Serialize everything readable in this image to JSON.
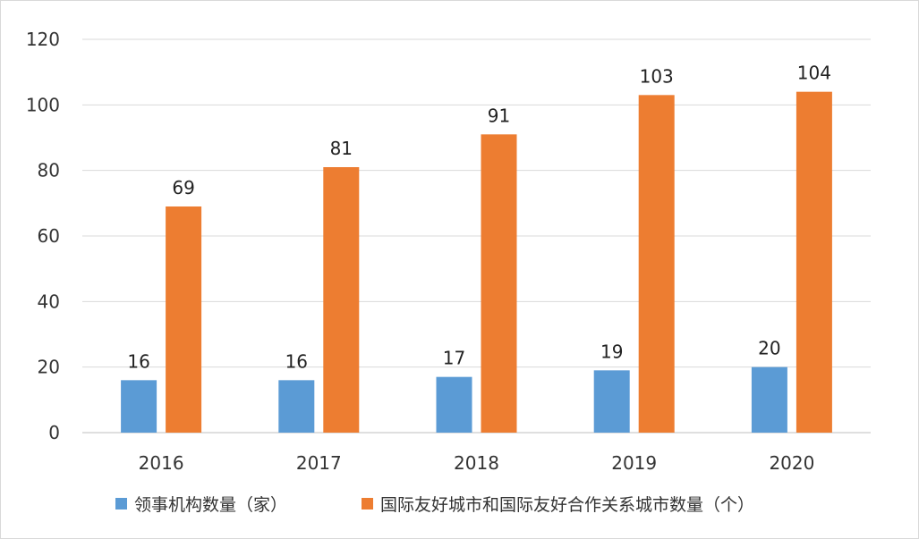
{
  "chart_data": {
    "type": "bar",
    "categories": [
      "2016",
      "2017",
      "2018",
      "2019",
      "2020"
    ],
    "series": [
      {
        "name": "领事机构数量（家）",
        "values": [
          16,
          16,
          17,
          19,
          20
        ],
        "color": "#5b9bd5"
      },
      {
        "name": "国际友好城市和国际友好合作关系城市数量（个）",
        "values": [
          69,
          81,
          91,
          103,
          104
        ],
        "color": "#ed7d31"
      }
    ],
    "ylim": [
      0,
      120
    ],
    "yticks": [
      0,
      20,
      40,
      60,
      80,
      100,
      120
    ],
    "grid": true,
    "legend_position": "bottom",
    "data_labels": true
  }
}
